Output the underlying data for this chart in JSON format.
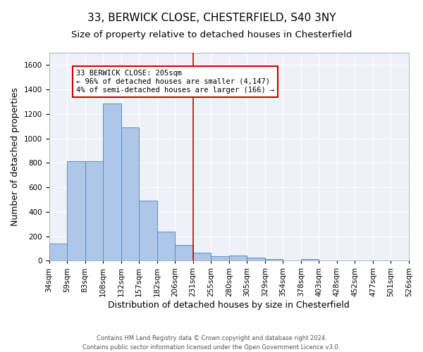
{
  "title1": "33, BERWICK CLOSE, CHESTERFIELD, S40 3NY",
  "title2": "Size of property relative to detached houses in Chesterfield",
  "xlabel": "Distribution of detached houses by size in Chesterfield",
  "ylabel": "Number of detached properties",
  "bar_values": [
    140,
    815,
    815,
    1285,
    1090,
    490,
    235,
    128,
    65,
    35,
    40,
    25,
    15,
    0,
    15,
    0,
    0,
    0,
    0,
    0
  ],
  "bin_labels": [
    "34sqm",
    "59sqm",
    "83sqm",
    "108sqm",
    "132sqm",
    "157sqm",
    "182sqm",
    "206sqm",
    "231sqm",
    "255sqm",
    "280sqm",
    "305sqm",
    "329sqm",
    "354sqm",
    "378sqm",
    "403sqm",
    "428sqm",
    "452sqm",
    "477sqm",
    "501sqm",
    "526sqm"
  ],
  "bar_color": "#aec6e8",
  "bar_edge_color": "#5a8fc3",
  "background_color": "#eef2f8",
  "grid_color": "#ffffff",
  "vline_x": 7.5,
  "vline_color": "#cc0000",
  "annotation_text": "33 BERWICK CLOSE: 205sqm\n← 96% of detached houses are smaller (4,147)\n4% of semi-detached houses are larger (166) →",
  "annotation_box_color": "#ffffff",
  "annotation_box_edge": "#cc0000",
  "ylim": [
    0,
    1700
  ],
  "yticks": [
    0,
    200,
    400,
    600,
    800,
    1000,
    1200,
    1400,
    1600
  ],
  "footnote": "Contains HM Land Registry data © Crown copyright and database right 2024.\nContains public sector information licensed under the Open Government Licence v3.0.",
  "title_fontsize": 11,
  "subtitle_fontsize": 9.5,
  "tick_fontsize": 7.5,
  "ylabel_fontsize": 9,
  "xlabel_fontsize": 9,
  "annot_fontsize": 7.5,
  "footnote_fontsize": 6
}
